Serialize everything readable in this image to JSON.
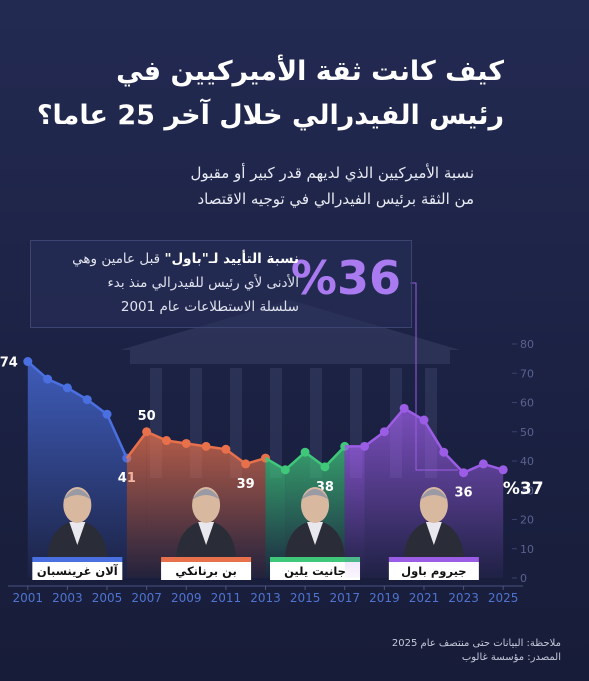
{
  "chart_data": {
    "type": "line",
    "title": [
      "كيف كانت ثقة الأميركيين في",
      "رئيس الفيدرالي خلال آخر 25 عاما؟"
    ],
    "subtitle": [
      "نسبة الأميركيين الذي لديهم قدر كبير أو مقبول",
      "من الثقة برئيس الفيدرالي في توجيه الاقتصاد"
    ],
    "callout": {
      "value": "%36",
      "highlight": "نسبة التأييد لـ\"باول\"",
      "lines": [
        "قبل عامين وهي",
        "الأدنى لأي رئيس للفيدرالي منذ بدء",
        "سلسلة الاستطلاعات عام 2001"
      ]
    },
    "x": [
      2001,
      2002,
      2003,
      2004,
      2005,
      2006,
      2007,
      2008,
      2009,
      2010,
      2011,
      2012,
      2013,
      2014,
      2015,
      2016,
      2017,
      2018,
      2019,
      2020,
      2021,
      2022,
      2023,
      2024,
      2025
    ],
    "series": [
      {
        "name": "آلان غرينسبان",
        "color": "#4a6fe0",
        "values": [
          74,
          68,
          65,
          61,
          56,
          41,
          null,
          null,
          null,
          null,
          null,
          null,
          null,
          null,
          null,
          null,
          null,
          null,
          null,
          null,
          null,
          null,
          null,
          null,
          null
        ],
        "value_labels": [
          "74",
          null,
          null,
          null,
          null,
          "41",
          null,
          null,
          null,
          null,
          null,
          null,
          null,
          null,
          null,
          null,
          null,
          null,
          null,
          null,
          null,
          null,
          null,
          null,
          null
        ]
      },
      {
        "name": "بن برنانكي",
        "color": "#e8704a",
        "values": [
          null,
          null,
          null,
          null,
          null,
          null,
          50,
          47,
          46,
          45,
          44,
          39,
          41,
          null,
          null,
          null,
          null,
          null,
          null,
          null,
          null,
          null,
          null,
          null,
          null
        ],
        "value_labels": [
          null,
          null,
          null,
          null,
          null,
          null,
          "50",
          null,
          null,
          null,
          null,
          "39",
          null,
          null,
          null,
          null,
          null,
          null,
          null,
          null,
          null,
          null,
          null,
          null,
          null
        ]
      },
      {
        "name": "جانيت يلين",
        "color": "#3fc77a",
        "values": [
          null,
          null,
          null,
          null,
          null,
          null,
          null,
          null,
          null,
          null,
          null,
          null,
          null,
          37,
          43,
          38,
          45,
          null,
          null,
          null,
          null,
          null,
          null,
          null,
          null
        ],
        "value_labels": [
          null,
          null,
          null,
          null,
          null,
          null,
          null,
          null,
          null,
          null,
          null,
          null,
          null,
          null,
          null,
          "38",
          null,
          null,
          null,
          null,
          null,
          null,
          null,
          null,
          null
        ]
      },
      {
        "name": "جيروم باول",
        "color": "#9b5de5",
        "values": [
          null,
          null,
          null,
          null,
          null,
          null,
          null,
          null,
          null,
          null,
          null,
          null,
          null,
          null,
          null,
          null,
          null,
          45,
          50,
          58,
          54,
          43,
          36,
          39,
          37
        ],
        "value_labels": [
          null,
          null,
          null,
          null,
          null,
          null,
          null,
          null,
          null,
          null,
          null,
          null,
          null,
          null,
          null,
          null,
          null,
          null,
          null,
          null,
          null,
          null,
          "36",
          null,
          "%37"
        ]
      }
    ],
    "xlim": [
      2000,
      2026
    ],
    "xticks": [
      2001,
      2003,
      2005,
      2007,
      2009,
      2011,
      2013,
      2015,
      2017,
      2019,
      2021,
      2023,
      2025
    ],
    "ylim": [
      0,
      80
    ],
    "yticks": [
      0,
      10,
      20,
      30,
      40,
      50,
      60,
      70,
      80
    ],
    "note": "ملاحظة: البيانات حتى منتصف عام 2025",
    "source": "المصدر: مؤسسة غالوب"
  }
}
